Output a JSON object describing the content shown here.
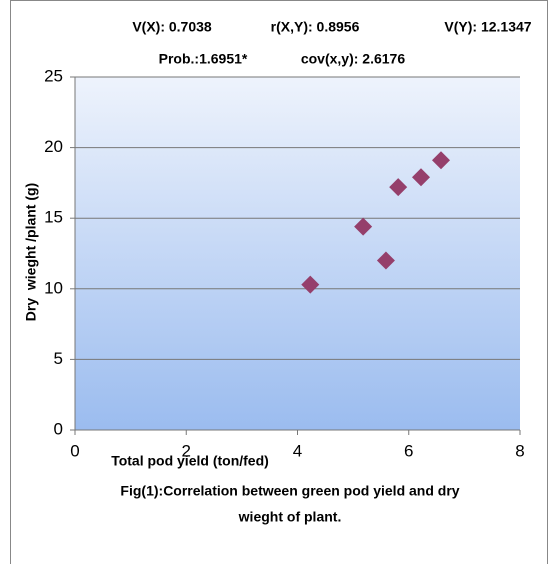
{
  "chart_data": {
    "type": "scatter",
    "annotations": [
      "V(X): 0.7038",
      "r(X,Y): 0.8956",
      "V(Y): 12.1347",
      "Prob.:1.6951*",
      "cov(x,y): 2.6176"
    ],
    "x_label": "Total pod yield (ton/fed)",
    "y_label": "Dry  wieght /plant (g)",
    "caption": [
      "Fig(1):Correlation between green pod yield and dry",
      "wieght of plant."
    ],
    "x": [
      4.23,
      5.18,
      5.59,
      5.81,
      6.22,
      6.58
    ],
    "values": [
      10.3,
      14.4,
      12.0,
      17.2,
      17.9,
      19.1
    ],
    "color": "#953f6b",
    "xlim": [
      0,
      8
    ],
    "xticks": [
      0,
      2,
      4,
      6,
      8
    ],
    "ylim": [
      0,
      25
    ],
    "yticks": [
      0,
      5,
      10,
      15,
      20,
      25
    ],
    "grid": true
  }
}
